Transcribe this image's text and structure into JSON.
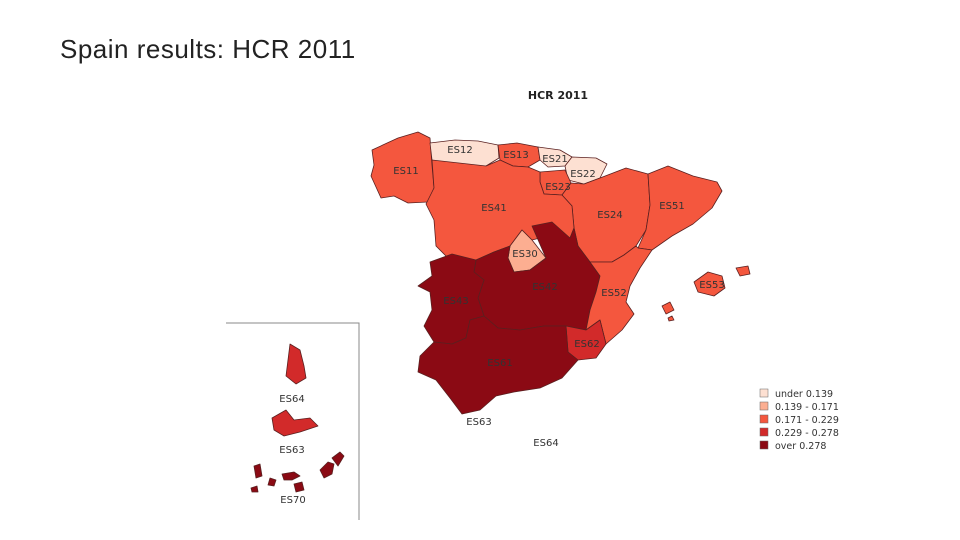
{
  "slide": {
    "title": "Spain results: HCR 2011"
  },
  "map": {
    "title": "HCR 2011",
    "legend": [
      {
        "label": "under 0.139",
        "color": "#fde0d2"
      },
      {
        "label": "0.139 - 0.171",
        "color": "#fcae91"
      },
      {
        "label": "0.171 - 0.229",
        "color": "#f4573e"
      },
      {
        "label": "0.229 - 0.278",
        "color": "#d22a2a"
      },
      {
        "label": "over 0.278",
        "color": "#8b0a14"
      }
    ],
    "regions": [
      {
        "code": "ES11",
        "class": 2
      },
      {
        "code": "ES12",
        "class": 0
      },
      {
        "code": "ES13",
        "class": 2
      },
      {
        "code": "ES21",
        "class": 0
      },
      {
        "code": "ES22",
        "class": 0
      },
      {
        "code": "ES23",
        "class": 2
      },
      {
        "code": "ES24",
        "class": 2
      },
      {
        "code": "ES30",
        "class": 1
      },
      {
        "code": "ES41",
        "class": 2
      },
      {
        "code": "ES42",
        "class": 4
      },
      {
        "code": "ES43",
        "class": 4
      },
      {
        "code": "ES51",
        "class": 2
      },
      {
        "code": "ES52",
        "class": 2
      },
      {
        "code": "ES53",
        "class": 2
      },
      {
        "code": "ES61",
        "class": 4
      },
      {
        "code": "ES62",
        "class": 3
      },
      {
        "code": "ES63",
        "class": 3
      },
      {
        "code": "ES64",
        "class": 3
      },
      {
        "code": "ES70",
        "class": 4
      }
    ],
    "extra_labels": [
      {
        "code": "ES63"
      },
      {
        "code": "ES64"
      }
    ]
  }
}
